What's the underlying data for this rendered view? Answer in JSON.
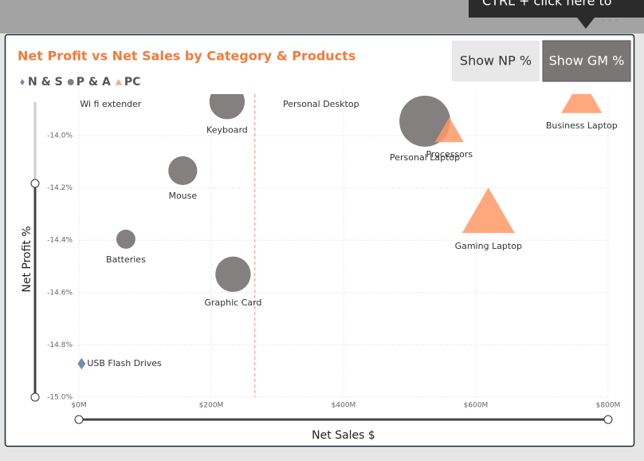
{
  "chart_data": {
    "type": "scatter",
    "title": "Net Profit vs Net Sales by Category & Products",
    "x_label": "Net Sales $",
    "y_label": "Net Profit %",
    "xlim": [
      0,
      800000000
    ],
    "ylim": [
      -15.0,
      -13.85
    ],
    "xticks": [
      {
        "value": 0,
        "label": "$0M"
      },
      {
        "value": 200000000,
        "label": "$200M"
      },
      {
        "value": 400000000,
        "label": "$400M"
      },
      {
        "value": 600000000,
        "label": "$600M"
      },
      {
        "value": 800000000,
        "label": "$800M"
      }
    ],
    "yticks": [
      {
        "value": -14.0,
        "label": "-14.0%"
      },
      {
        "value": -14.2,
        "label": "-14.2%"
      },
      {
        "value": -14.4,
        "label": "-14.4%"
      },
      {
        "value": -14.6,
        "label": "-14.6%"
      },
      {
        "value": -14.8,
        "label": "-14.8%"
      },
      {
        "value": -15.0,
        "label": "-15.0%"
      }
    ],
    "grid": true,
    "x_reference": 266000000,
    "series": [
      {
        "name": "N & S",
        "color": "#6e8db0",
        "marker": "diamond",
        "labels": [
          "USB Flash Drives"
        ],
        "x": [
          4000000
        ],
        "values": [
          -14.872
        ],
        "sizes": [
          5
        ]
      },
      {
        "name": "P & A",
        "color": "#6f6a6a",
        "marker": "circle",
        "labels": [
          "Wi fi extender",
          "Keyboard",
          "Mouse",
          "Batteries",
          "Graphic Card",
          "Personal Laptop"
        ],
        "x": [
          48000000,
          224000000,
          157000000,
          71000000,
          233000000,
          523000000
        ],
        "values": [
          -13.8,
          -13.87,
          -14.134,
          -14.396,
          -14.53,
          -13.945
        ],
        "sizes": [
          5,
          48,
          32,
          14,
          48,
          100
        ]
      },
      {
        "name": "PC",
        "color": "#ff9966",
        "marker": "triangle",
        "labels": [
          "Personal Desktop",
          "Processors",
          "Business Laptop",
          "Gaming Laptop"
        ],
        "x": [
          366000000,
          560000000,
          760000000,
          619000000
        ],
        "values": [
          -13.8,
          -13.98,
          -13.85,
          -14.29
        ],
        "sizes": [
          5,
          30,
          60,
          100
        ]
      }
    ]
  },
  "buttons": [
    "Show NP %",
    "Show GM %"
  ],
  "tooltip": "CTRL + click here to"
}
